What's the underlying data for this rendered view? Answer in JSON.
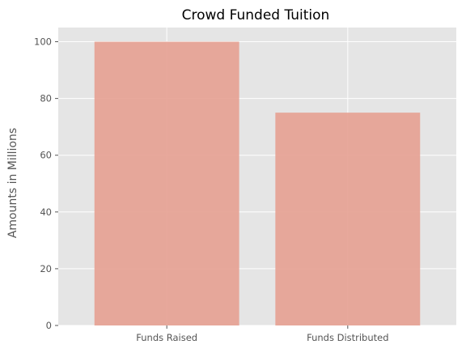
{
  "chart_data": {
    "type": "bar",
    "title": "Crowd Funded Tuition",
    "xlabel": "",
    "ylabel": "Amounts in Millions",
    "categories": [
      "Funds Raised",
      "Funds Distributed"
    ],
    "values": [
      100,
      75
    ],
    "ylim": [
      0,
      105
    ],
    "yticks": [
      0,
      20,
      40,
      60,
      80,
      100
    ],
    "grid": true,
    "legend": "none",
    "colors": {
      "bar": "#e5a091",
      "background": "#e5e5e5",
      "grid": "#ffffff",
      "text": "#555555"
    }
  }
}
